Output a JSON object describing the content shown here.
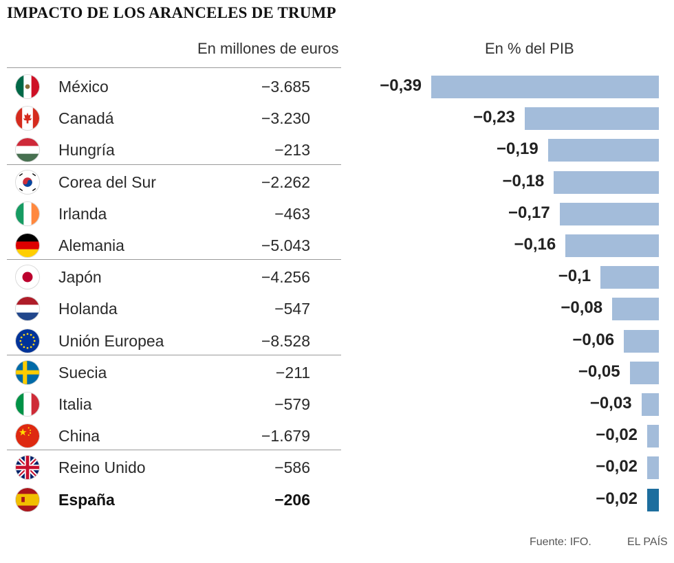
{
  "title": "IMPACTO DE LOS ARANCELES DE TRUMP",
  "column_headers": {
    "euros": "En millones de euros",
    "pib": "En % del PIB"
  },
  "footer": {
    "source": "Fuente: IFO.",
    "brand": "EL PAÍS"
  },
  "colors": {
    "bar": "#a3bcda",
    "highlight": "#1d6e9e"
  },
  "chart_data": {
    "type": "bar",
    "title": "IMPACTO DE LOS ARANCELES DE TRUMP",
    "xlabel": "En % del PIB",
    "ylabel": "",
    "orientation": "horizontal",
    "xlim": [
      -0.39,
      0
    ],
    "categories": [
      "México",
      "Canadá",
      "Hungría",
      "Corea del Sur",
      "Irlanda",
      "Alemania",
      "Japón",
      "Holanda",
      "Unión Europea",
      "Suecia",
      "Italia",
      "China",
      "Reino Unido",
      "España"
    ],
    "series": [
      {
        "name": "En % del PIB",
        "values": [
          -0.39,
          -0.23,
          -0.19,
          -0.18,
          -0.17,
          -0.16,
          -0.1,
          -0.08,
          -0.06,
          -0.05,
          -0.03,
          -0.02,
          -0.02,
          -0.02
        ]
      },
      {
        "name": "En millones de euros",
        "values": [
          -3685,
          -3230,
          -213,
          -2262,
          -463,
          -5043,
          -4256,
          -547,
          -8528,
          -211,
          -579,
          -1679,
          -586,
          -206
        ]
      }
    ],
    "rows": [
      {
        "country": "México",
        "flag": "mexico-flag-icon",
        "euros": "−3.685",
        "pib": -0.39,
        "pib_label": "−0,39"
      },
      {
        "country": "Canadá",
        "flag": "canada-flag-icon",
        "euros": "−3.230",
        "pib": -0.23,
        "pib_label": "−0,23"
      },
      {
        "country": "Hungría",
        "flag": "hungary-flag-icon",
        "euros": "−213",
        "pib": -0.19,
        "pib_label": "−0,19"
      },
      {
        "country": "Corea del Sur",
        "flag": "south-korea-flag-icon",
        "euros": "−2.262",
        "pib": -0.18,
        "pib_label": "−0,18"
      },
      {
        "country": "Irlanda",
        "flag": "ireland-flag-icon",
        "euros": "−463",
        "pib": -0.17,
        "pib_label": "−0,17"
      },
      {
        "country": "Alemania",
        "flag": "germany-flag-icon",
        "euros": "−5.043",
        "pib": -0.16,
        "pib_label": "−0,16"
      },
      {
        "country": "Japón",
        "flag": "japan-flag-icon",
        "euros": "−4.256",
        "pib": -0.1,
        "pib_label": "−0,1"
      },
      {
        "country": "Holanda",
        "flag": "netherlands-flag-icon",
        "euros": "−547",
        "pib": -0.08,
        "pib_label": "−0,08"
      },
      {
        "country": "Unión Europea",
        "flag": "eu-flag-icon",
        "euros": "−8.528",
        "pib": -0.06,
        "pib_label": "−0,06"
      },
      {
        "country": "Suecia",
        "flag": "sweden-flag-icon",
        "euros": "−211",
        "pib": -0.05,
        "pib_label": "−0,05"
      },
      {
        "country": "Italia",
        "flag": "italy-flag-icon",
        "euros": "−579",
        "pib": -0.03,
        "pib_label": "−0,03"
      },
      {
        "country": "China",
        "flag": "china-flag-icon",
        "euros": "−1.679",
        "pib": -0.02,
        "pib_label": "−0,02"
      },
      {
        "country": "Reino Unido",
        "flag": "uk-flag-icon",
        "euros": "−586",
        "pib": -0.02,
        "pib_label": "−0,02"
      },
      {
        "country": "España",
        "flag": "spain-flag-icon",
        "euros": "−206",
        "pib": -0.02,
        "pib_label": "−0,02",
        "highlight": true
      }
    ]
  }
}
